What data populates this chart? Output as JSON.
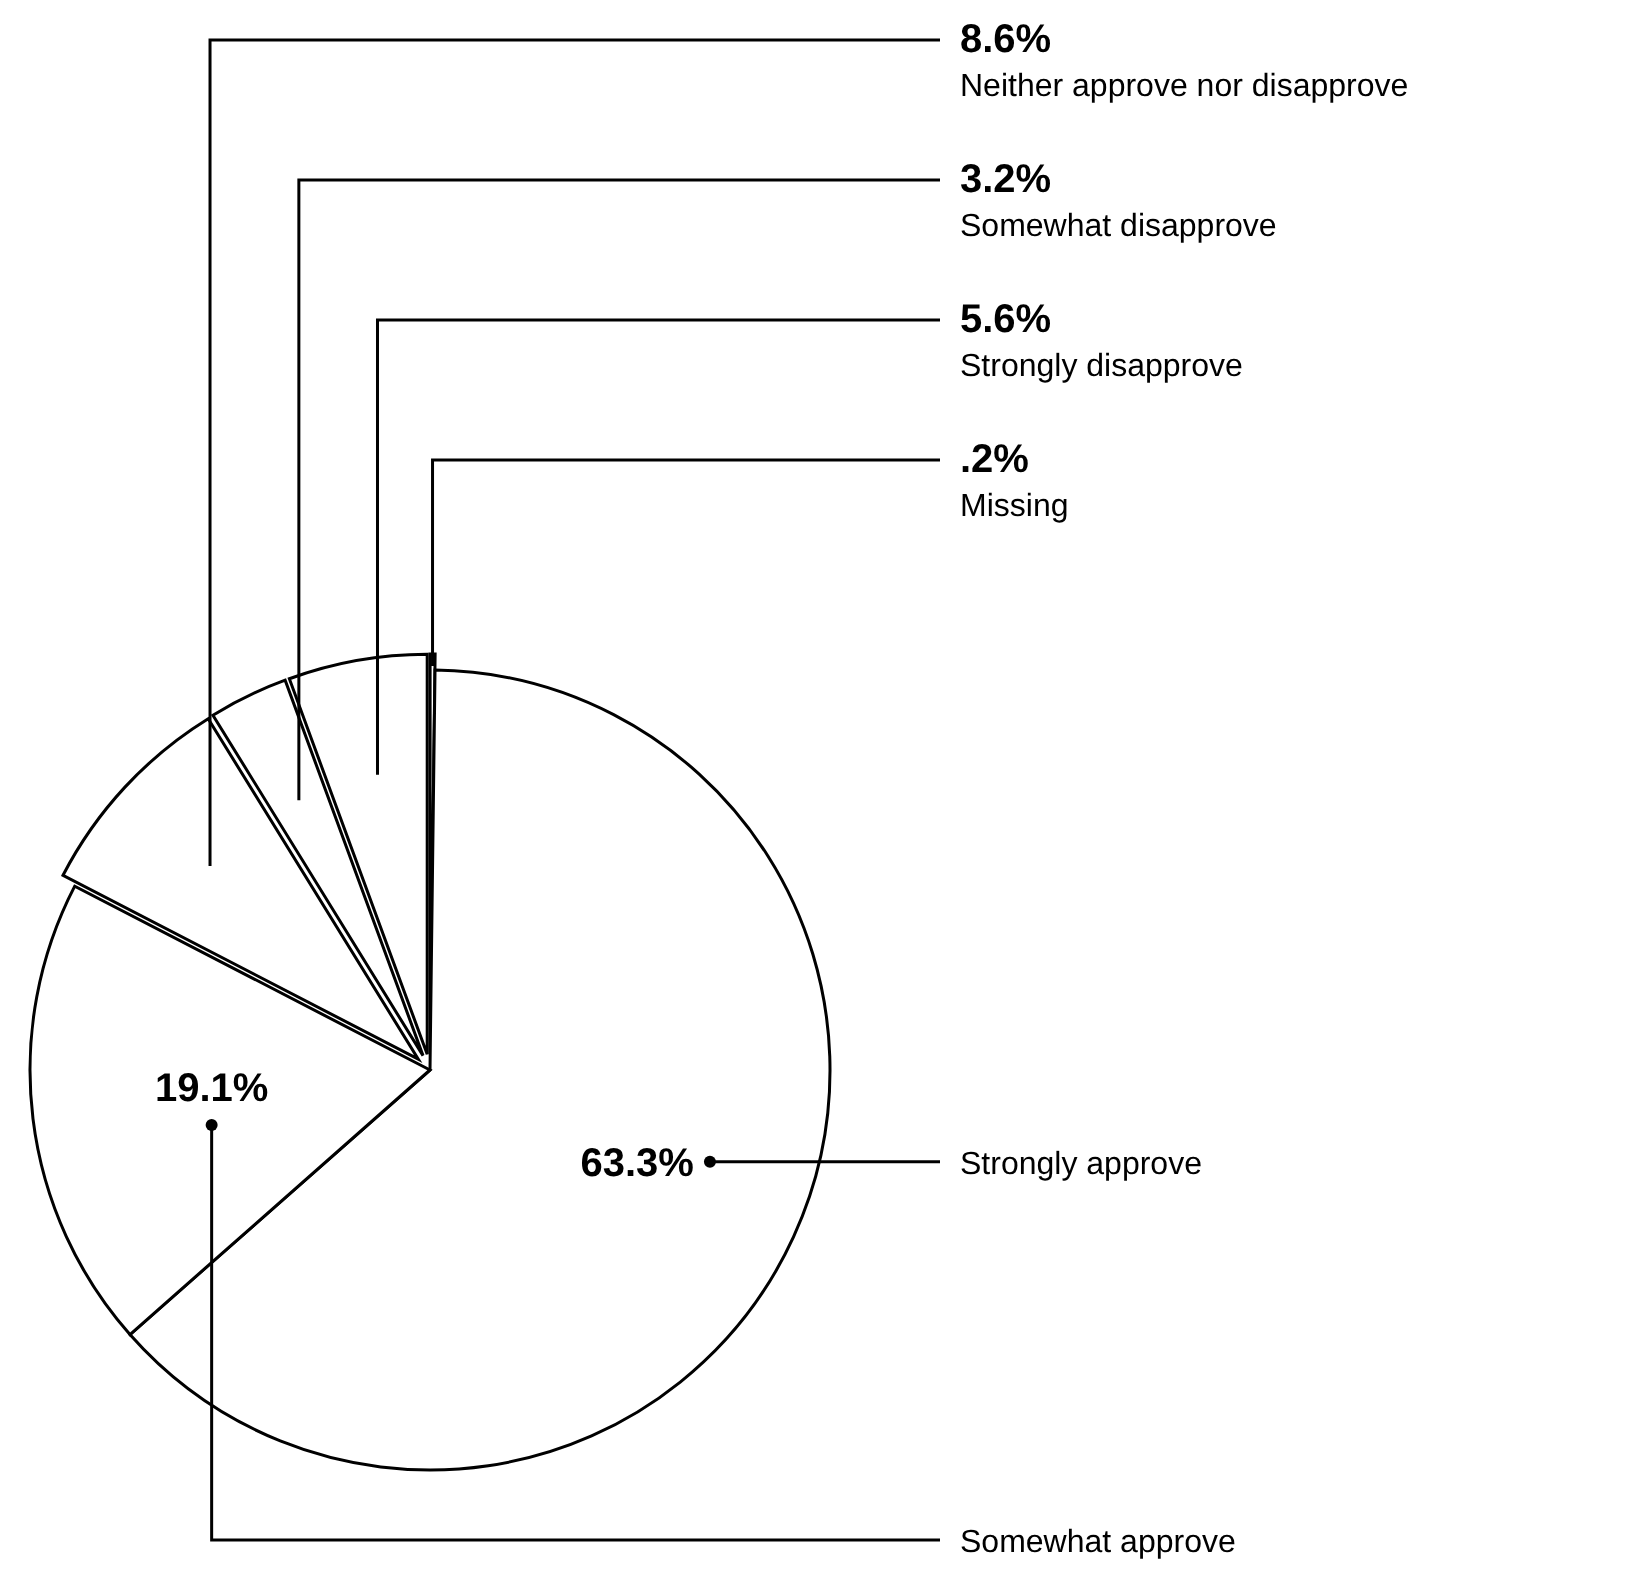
{
  "chart_data": {
    "type": "pie",
    "categories": [
      "Missing",
      "Strongly approve",
      "Somewhat approve",
      "Neither approve nor disapprove",
      "Somewhat disapprove",
      "Strongly disapprove"
    ],
    "values": [
      0.2,
      63.3,
      19.1,
      8.6,
      3.2,
      5.6
    ],
    "value_labels": [
      ".2%",
      "63.3%",
      "19.1%",
      "8.6%",
      "3.2%",
      "5.6%"
    ],
    "colors": [
      "#ffffff",
      "#ffffff",
      "#ffffff",
      "#ffffff",
      "#ffffff",
      "#ffffff"
    ]
  }
}
